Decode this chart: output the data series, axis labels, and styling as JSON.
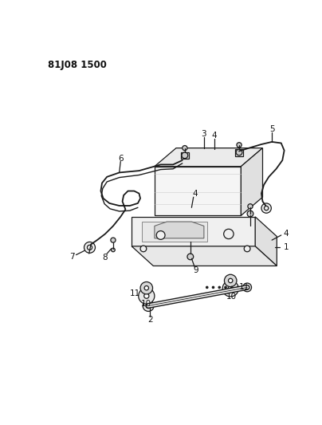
{
  "title": "81J08 1500",
  "bg_color": "#ffffff",
  "line_color": "#1a1a1a",
  "label_color": "#111111",
  "title_fontsize": 8.5,
  "label_fontsize": 7.5
}
